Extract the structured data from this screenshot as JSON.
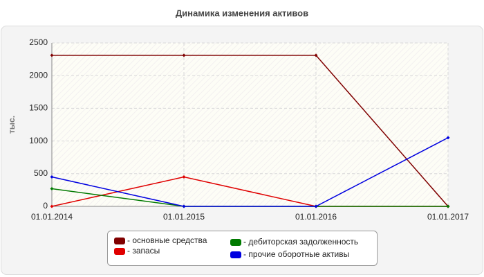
{
  "chart_data": {
    "type": "line",
    "title": "Динамика изменения активов",
    "y_label": "тыс.",
    "categories": [
      "01.01.2014",
      "01.01.2015",
      "01.01.2016",
      "01.01.2017"
    ],
    "series": [
      {
        "name": "- основные средства",
        "color": "#800000",
        "values": [
          2310,
          2310,
          2310,
          0
        ]
      },
      {
        "name": "- запасы",
        "color": "#e00000",
        "values": [
          0,
          450,
          0,
          0
        ]
      },
      {
        "name": "- дебиторская задолженность",
        "color": "#007a00",
        "values": [
          270,
          0,
          0,
          0
        ]
      },
      {
        "name": "- прочие оборотные активы",
        "color": "#0000e0",
        "values": [
          450,
          0,
          0,
          1050
        ]
      }
    ],
    "ylim": [
      0,
      2500
    ],
    "yticks": [
      0,
      500,
      1000,
      1500,
      2000,
      2500
    ],
    "grid": true
  }
}
